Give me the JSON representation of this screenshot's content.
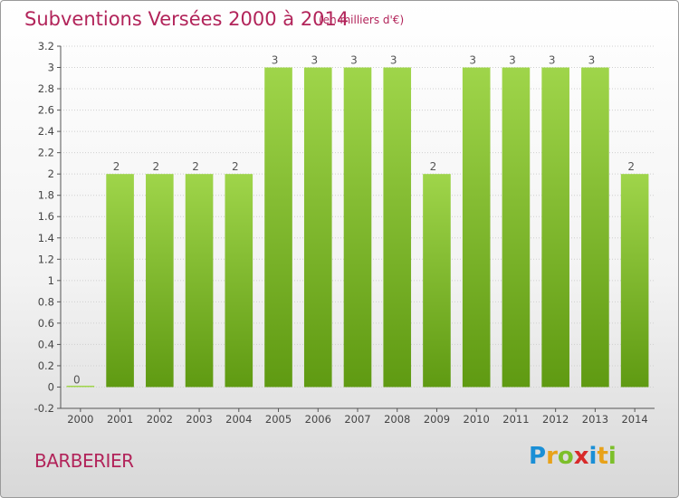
{
  "header": {
    "title": "Subventions Versées 2000 à 2014",
    "subtitle": "(en milliers d'€)"
  },
  "footer": {
    "commune": "BARBERIER",
    "logo_letters": [
      {
        "ch": "P",
        "color": "#1a8fd6"
      },
      {
        "ch": "r",
        "color": "#e8a21a"
      },
      {
        "ch": "o",
        "color": "#7cbf2a"
      },
      {
        "ch": "x",
        "color": "#d82a2a"
      },
      {
        "ch": "i",
        "color": "#1a8fd6"
      },
      {
        "ch": "t",
        "color": "#e8a21a"
      },
      {
        "ch": "i",
        "color": "#7cbf2a"
      }
    ]
  },
  "colors": {
    "bar_top": "#9fd54a",
    "bar_bottom": "#5f9a12",
    "grid": "#cfcfcf",
    "axis": "#555555"
  },
  "chart_data": {
    "type": "bar",
    "categories": [
      "2000",
      "2001",
      "2002",
      "2003",
      "2004",
      "2005",
      "2006",
      "2007",
      "2008",
      "2009",
      "2010",
      "2011",
      "2012",
      "2013",
      "2014"
    ],
    "values": [
      0,
      2,
      2,
      2,
      2,
      3,
      3,
      3,
      3,
      2,
      3,
      3,
      3,
      3,
      2
    ],
    "value_labels": [
      "0",
      "2",
      "2",
      "2",
      "2",
      "3",
      "3",
      "3",
      "3",
      "2",
      "3",
      "3",
      "3",
      "3",
      "2"
    ],
    "ylim": [
      -0.2,
      3.2
    ],
    "yticks": [
      -0.2,
      0,
      0.2,
      0.4,
      0.6,
      0.8,
      1,
      1.2,
      1.4,
      1.6,
      1.8,
      2,
      2.2,
      2.4,
      2.6,
      2.8,
      3,
      3.2
    ],
    "ytick_labels": [
      "-0.2",
      "0",
      "0.2",
      "0.4",
      "0.6",
      "0.8",
      "1",
      "1.2",
      "1.4",
      "1.6",
      "1.8",
      "2",
      "2.2",
      "2.4",
      "2.6",
      "2.8",
      "3",
      "3.2"
    ],
    "xlabel": "",
    "ylabel": "",
    "grid": true,
    "legend": "none"
  }
}
